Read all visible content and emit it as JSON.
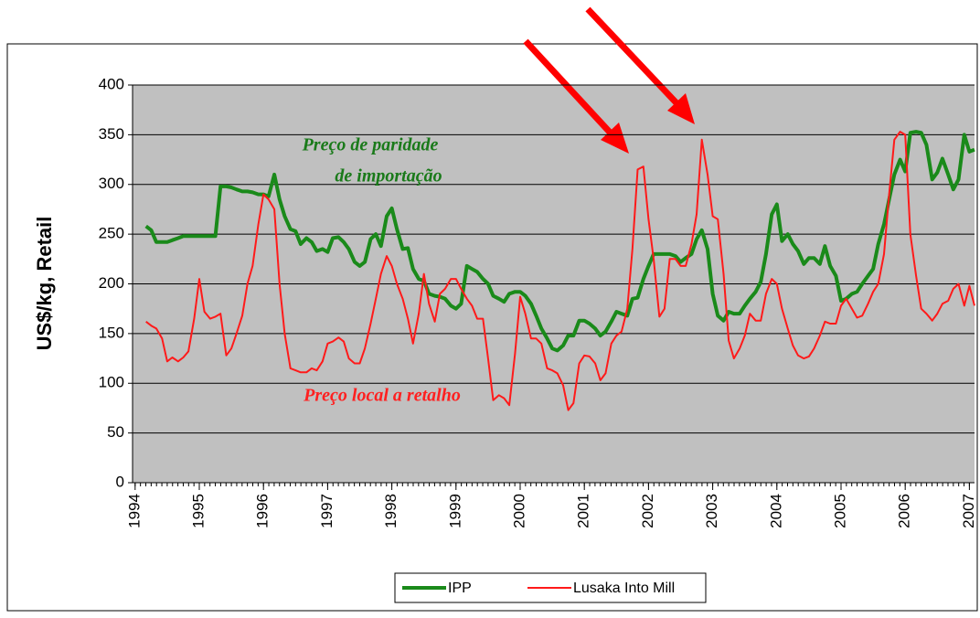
{
  "chart_data": {
    "type": "line",
    "ylabel": "US$/kg, Retail",
    "annotations": [
      {
        "lines": [
          "Preço de paridade",
          "de importação"
        ],
        "color": "#1a7a1a"
      },
      {
        "lines": [
          "Preço local a retalho"
        ],
        "color": "#ff2020"
      }
    ],
    "xlim": [
      1993.96,
      2007.08
    ],
    "xticks": [
      1994,
      1995,
      1996,
      1997,
      1998,
      1999,
      2000,
      2001,
      2002,
      2003,
      2004,
      2005,
      2006,
      2007
    ],
    "ylim": [
      0,
      400
    ],
    "yticks": [
      0,
      50,
      100,
      150,
      200,
      250,
      300,
      350,
      400
    ],
    "grid": true,
    "legend": "bottom",
    "x": [
      1994.17,
      1994.25,
      1994.33,
      1994.42,
      1994.5,
      1994.58,
      1994.67,
      1994.75,
      1994.83,
      1994.92,
      1995.0,
      1995.08,
      1995.17,
      1995.25,
      1995.33,
      1995.42,
      1995.5,
      1995.58,
      1995.67,
      1995.75,
      1995.83,
      1995.92,
      1996.0,
      1996.08,
      1996.17,
      1996.25,
      1996.33,
      1996.42,
      1996.5,
      1996.58,
      1996.67,
      1996.75,
      1996.83,
      1996.92,
      1997.0,
      1997.08,
      1997.17,
      1997.25,
      1997.33,
      1997.42,
      1997.5,
      1997.58,
      1997.67,
      1997.75,
      1997.83,
      1997.92,
      1998.0,
      1998.08,
      1998.17,
      1998.25,
      1998.33,
      1998.42,
      1998.5,
      1998.58,
      1998.67,
      1998.75,
      1998.83,
      1998.92,
      1999.0,
      1999.08,
      1999.17,
      1999.25,
      1999.33,
      1999.42,
      1999.5,
      1999.58,
      1999.67,
      1999.75,
      1999.83,
      1999.92,
      2000.0,
      2000.08,
      2000.17,
      2000.25,
      2000.33,
      2000.42,
      2000.5,
      2000.58,
      2000.67,
      2000.75,
      2000.83,
      2000.92,
      2001.0,
      2001.08,
      2001.17,
      2001.25,
      2001.33,
      2001.42,
      2001.5,
      2001.58,
      2001.67,
      2001.75,
      2001.83,
      2001.92,
      2002.0,
      2002.08,
      2002.17,
      2002.25,
      2002.33,
      2002.42,
      2002.5,
      2002.58,
      2002.67,
      2002.75,
      2002.83,
      2002.92,
      2003.0,
      2003.08,
      2003.17,
      2003.25,
      2003.33,
      2003.42,
      2003.5,
      2003.58,
      2003.67,
      2003.75,
      2003.83,
      2003.92,
      2004.0,
      2004.08,
      2004.17,
      2004.25,
      2004.33,
      2004.42,
      2004.5,
      2004.58,
      2004.67,
      2004.75,
      2004.83,
      2004.92,
      2005.0,
      2005.08,
      2005.17,
      2005.25,
      2005.33,
      2005.42,
      2005.5,
      2005.58,
      2005.67,
      2005.75,
      2005.83,
      2005.92,
      2006.0,
      2006.08,
      2006.17,
      2006.25,
      2006.33,
      2006.42,
      2006.5,
      2006.58,
      2006.67,
      2006.75,
      2006.83,
      2006.92,
      2007.0,
      2007.08
    ],
    "series": [
      {
        "name": "IPP",
        "color": "#1a8a1a",
        "width": 4,
        "values": [
          258,
          254,
          242,
          242,
          242,
          244,
          246,
          248,
          248,
          248,
          248,
          248,
          248,
          248,
          298,
          298,
          297,
          295,
          293,
          293,
          292,
          290,
          290,
          288,
          310,
          285,
          268,
          255,
          253,
          240,
          246,
          242,
          233,
          235,
          232,
          246,
          247,
          242,
          235,
          222,
          218,
          222,
          245,
          250,
          238,
          268,
          276,
          255,
          235,
          236,
          215,
          205,
          203,
          190,
          188,
          187,
          185,
          178,
          175,
          180,
          218,
          215,
          212,
          205,
          200,
          188,
          185,
          182,
          190,
          192,
          192,
          188,
          180,
          168,
          155,
          145,
          135,
          133,
          138,
          148,
          148,
          163,
          163,
          160,
          155,
          148,
          152,
          162,
          172,
          170,
          168,
          185,
          186,
          205,
          218,
          230,
          230,
          230,
          230,
          228,
          222,
          226,
          230,
          245,
          254,
          235,
          190,
          168,
          163,
          172,
          170,
          170,
          178,
          185,
          192,
          202,
          230,
          270,
          280,
          243,
          250,
          240,
          233,
          220,
          226,
          226,
          220,
          238,
          218,
          208,
          183,
          185,
          190,
          192,
          200,
          208,
          215,
          240,
          260,
          285,
          310,
          325,
          313,
          352,
          353,
          352,
          340,
          305,
          312,
          326,
          310,
          295,
          305,
          350,
          333,
          335
        ]
      },
      {
        "name": "Lusaka Into Mill",
        "color": "#ff1a1a",
        "width": 2,
        "values": [
          162,
          158,
          155,
          145,
          122,
          126,
          122,
          126,
          132,
          165,
          205,
          172,
          165,
          167,
          170,
          128,
          135,
          150,
          168,
          200,
          218,
          260,
          290,
          285,
          275,
          200,
          150,
          115,
          113,
          111,
          111,
          115,
          113,
          122,
          140,
          142,
          146,
          142,
          125,
          120,
          120,
          135,
          160,
          185,
          210,
          228,
          218,
          200,
          185,
          165,
          140,
          170,
          210,
          180,
          162,
          190,
          195,
          205,
          205,
          195,
          185,
          178,
          165,
          165,
          125,
          83,
          88,
          85,
          78,
          130,
          187,
          170,
          145,
          145,
          140,
          115,
          113,
          110,
          98,
          73,
          80,
          120,
          128,
          127,
          120,
          103,
          110,
          140,
          148,
          152,
          175,
          235,
          315,
          318,
          265,
          225,
          167,
          175,
          225,
          225,
          218,
          218,
          240,
          270,
          345,
          310,
          268,
          265,
          210,
          143,
          125,
          135,
          148,
          170,
          163,
          163,
          190,
          205,
          200,
          175,
          155,
          138,
          128,
          125,
          127,
          135,
          148,
          162,
          160,
          160,
          178,
          185,
          175,
          166,
          168,
          180,
          192,
          200,
          230,
          290,
          345,
          353,
          350,
          250,
          208,
          175,
          170,
          163,
          170,
          180,
          183,
          195,
          200,
          178,
          198,
          178
        ]
      }
    ]
  }
}
